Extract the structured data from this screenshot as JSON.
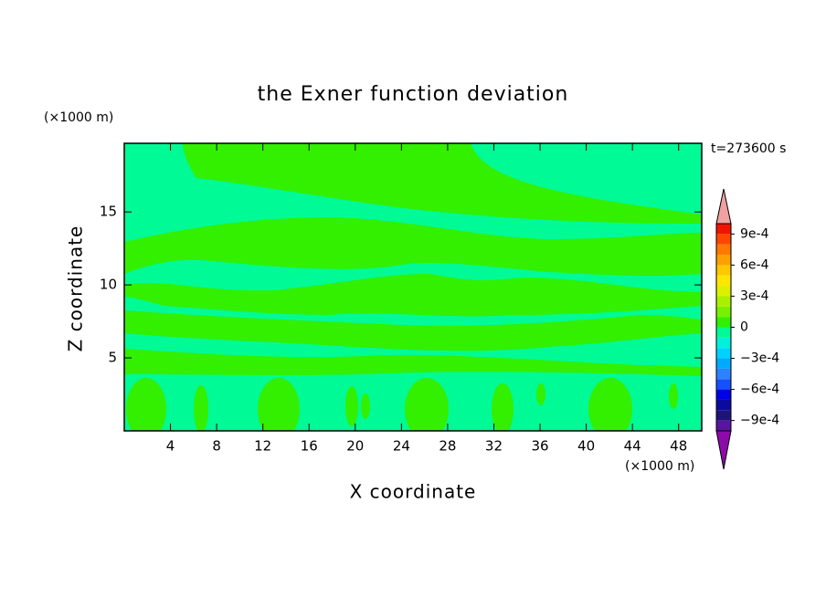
{
  "chart_data": {
    "type": "contour",
    "title": "the Exner function deviation",
    "xlabel": "X coordinate",
    "ylabel": "Z coordinate",
    "xunit": "(×1000 m)",
    "yunit": "(×1000 m)",
    "annotation": "t=273600 s",
    "xlim": [
      0,
      50
    ],
    "ylim": [
      0,
      19.7
    ],
    "xticks": [
      4,
      8,
      12,
      16,
      20,
      24,
      28,
      32,
      36,
      40,
      44,
      48
    ],
    "yticks": [
      5,
      10,
      15
    ],
    "colorbar": {
      "levels": [
        -0.001,
        -0.0009,
        -0.0008,
        -0.0007,
        -0.0006,
        -0.0005,
        -0.0004,
        -0.0003,
        -0.0002,
        -0.0001,
        0,
        0.0001,
        0.0002,
        0.0003,
        0.0004,
        0.0005,
        0.0006,
        0.0007,
        0.0008,
        0.0009,
        0.001
      ],
      "colors": [
        "#5a14a0",
        "#1e1478",
        "#0a0aa0",
        "#0000e6",
        "#1450ff",
        "#2d82ff",
        "#00aaff",
        "#00d2ff",
        "#00f0dc",
        "#00fa96",
        "#32f000",
        "#78f000",
        "#aaf000",
        "#dcf000",
        "#ffe600",
        "#ffc800",
        "#ffa000",
        "#ff7800",
        "#ff4600",
        "#f01400"
      ],
      "extend_colors": [
        "#8c0aaa",
        "#f0a0a0"
      ],
      "ticks": [
        {
          "value": -0.0009,
          "label": "−9e-4"
        },
        {
          "value": -0.0006,
          "label": "−6e-4"
        },
        {
          "value": -0.0003,
          "label": "−3e-4"
        },
        0,
        {
          "value": 0.0003,
          "label": "3e-4"
        },
        {
          "value": 0.0006,
          "label": "6e-4"
        },
        {
          "value": 0.0009,
          "label": "9e-4"
        }
      ]
    }
  }
}
